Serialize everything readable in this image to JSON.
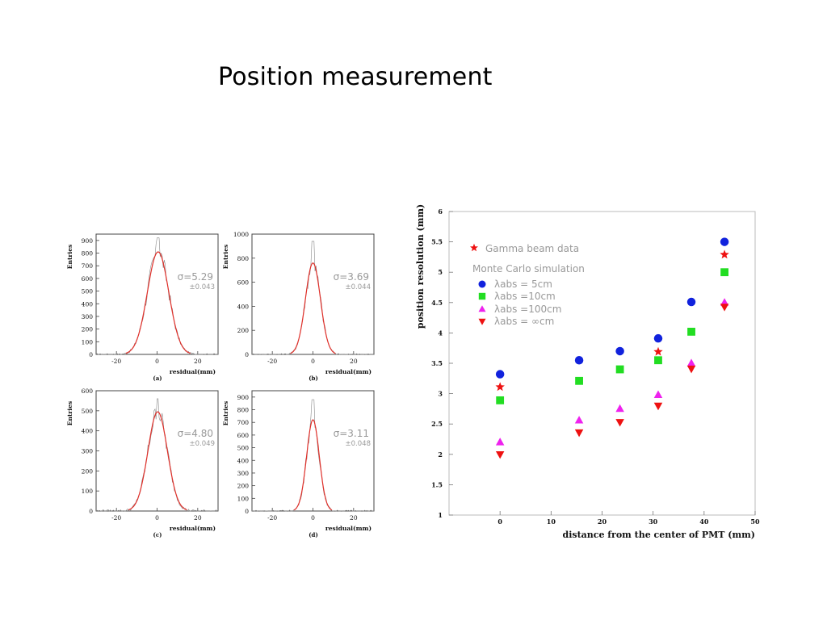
{
  "slide": {
    "title": "Position measurement"
  },
  "chart_data": [
    {
      "type": "line",
      "panel": "(a)",
      "ylabel": "Entries",
      "xlabel": "residual(mm)",
      "sigma": "σ=5.29",
      "error": "±0.043",
      "xlim": [
        -30,
        30
      ],
      "ylim": [
        0,
        950
      ],
      "xticks": [
        -20,
        0,
        20
      ],
      "yticks": [
        0,
        100,
        200,
        300,
        400,
        500,
        600,
        700,
        800,
        900
      ],
      "gaussian": {
        "amplitude": 810,
        "mean": 0.5,
        "sigma": 5.29
      },
      "data_peak": 920
    },
    {
      "type": "line",
      "panel": "(b)",
      "ylabel": "Entries",
      "xlabel": "residual(mm)",
      "sigma": "σ=3.69",
      "error": "±0.044",
      "xlim": [
        -30,
        30
      ],
      "ylim": [
        0,
        1000
      ],
      "xticks": [
        -20,
        0,
        20
      ],
      "yticks": [
        0,
        200,
        400,
        600,
        800,
        1000
      ],
      "gaussian": {
        "amplitude": 760,
        "mean": 0.0,
        "sigma": 3.69
      },
      "data_peak": 940
    },
    {
      "type": "line",
      "panel": "(c)",
      "ylabel": "Entries",
      "xlabel": "residual(mm)",
      "sigma": "σ=4.80",
      "error": "±0.049",
      "xlim": [
        -30,
        30
      ],
      "ylim": [
        0,
        600
      ],
      "xticks": [
        -20,
        0,
        20
      ],
      "yticks": [
        0,
        100,
        200,
        300,
        400,
        500,
        600
      ],
      "gaussian": {
        "amplitude": 495,
        "mean": 0.3,
        "sigma": 4.8
      },
      "data_peak": 560
    },
    {
      "type": "line",
      "panel": "(d)",
      "ylabel": "Entries",
      "xlabel": "residual(mm)",
      "sigma": "σ=3.11",
      "error": "±0.048",
      "xlim": [
        -30,
        30
      ],
      "ylim": [
        0,
        950
      ],
      "xticks": [
        -20,
        0,
        20
      ],
      "yticks": [
        0,
        100,
        200,
        300,
        400,
        500,
        600,
        700,
        800,
        900
      ],
      "gaussian": {
        "amplitude": 720,
        "mean": 0.0,
        "sigma": 3.11
      },
      "data_peak": 880
    },
    {
      "type": "scatter",
      "xlabel": "distance from the center of PMT (mm)",
      "ylabel": "position resolution (mm)",
      "xlim": [
        -10,
        50
      ],
      "ylim": [
        1,
        6
      ],
      "xticks": [
        0,
        10,
        20,
        30,
        40,
        50
      ],
      "yticks": [
        1,
        1.5,
        2,
        2.5,
        3,
        3.5,
        4,
        4.5,
        5,
        5.5,
        6
      ],
      "legend_note": "Monte Carlo simulation",
      "series": [
        {
          "name": "Gamma beam data",
          "marker": "star",
          "color": "#ee1111",
          "points": [
            [
              0,
              3.11
            ],
            [
              31,
              3.69
            ],
            [
              44,
              5.29
            ]
          ]
        },
        {
          "name": "λabs = 5cm",
          "marker": "circle",
          "color": "#1122dd",
          "points": [
            [
              0,
              3.32
            ],
            [
              15.5,
              3.55
            ],
            [
              23.5,
              3.7
            ],
            [
              31,
              3.91
            ],
            [
              37.5,
              4.51
            ],
            [
              44,
              5.5
            ]
          ]
        },
        {
          "name": "λabs =10cm",
          "marker": "square",
          "color": "#22dd22",
          "points": [
            [
              0,
              2.89
            ],
            [
              15.5,
              3.21
            ],
            [
              23.5,
              3.4
            ],
            [
              31,
              3.55
            ],
            [
              37.5,
              4.02
            ],
            [
              44,
              5.0
            ]
          ]
        },
        {
          "name": "λabs =100cm",
          "marker": "triangle-up",
          "color": "#ee22ee",
          "points": [
            [
              0,
              2.2
            ],
            [
              15.5,
              2.56
            ],
            [
              23.5,
              2.75
            ],
            [
              31,
              2.98
            ],
            [
              37.5,
              3.5
            ],
            [
              44,
              4.5
            ]
          ]
        },
        {
          "name": "λabs = ∞cm",
          "marker": "triangle-down",
          "color": "#ee1111",
          "points": [
            [
              0,
              2.0
            ],
            [
              15.5,
              2.36
            ],
            [
              23.5,
              2.53
            ],
            [
              31,
              2.8
            ],
            [
              37.5,
              3.41
            ],
            [
              44,
              4.43
            ]
          ]
        }
      ]
    }
  ]
}
